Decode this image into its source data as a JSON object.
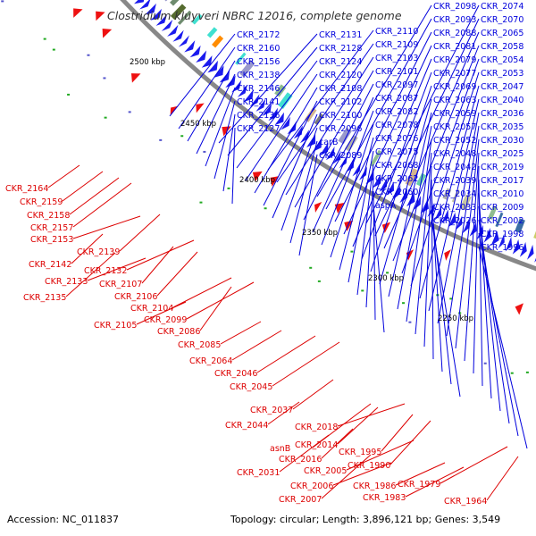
{
  "title": "Clostridium kluyveri NBRC 12016, complete genome",
  "footer": {
    "accession": "Accession: NC_011837",
    "info": "Topology: circular; Length: 3,896,121 bp; Genes: 3,549"
  },
  "colors": {
    "forward_label": "#0000dd",
    "reverse_label": "#dd0000",
    "forward_arrow": "#1a1aee",
    "reverse_arrow": "#ee1111",
    "backbone": "#888888"
  },
  "kbp_ticks": [
    "2500 kbp",
    "2450 kbp",
    "2400 kbp",
    "2350 kbp",
    "2300 kbp",
    "2250 kbp"
  ],
  "forward_labels": [
    "CKR_2172",
    "CKR_2160",
    "CKR_2156",
    "CKR_2138",
    "CKR_2146",
    "CKR_2141",
    "CKR_2136",
    "CKR_2127",
    "CKR_2131",
    "CKR_2128",
    "CKR_2124",
    "CKR_2120",
    "CKR_2108",
    "CKR_2102",
    "CKR_2100",
    "CKR_2096",
    "carB",
    "CKR_2089",
    "CKR_2110",
    "CKR_2109",
    "CKR_2103",
    "CKR_2101",
    "CKR_2097",
    "CKR_2087",
    "CKR_2082",
    "CKR_2078",
    "CKR_2076",
    "CKR_2075",
    "CKR_2068",
    "CKR_2062",
    "CKR_2060",
    "aspA",
    "CKR_2098",
    "CKR_2093",
    "CKR_2088",
    "CKR_2081",
    "CKR_2079",
    "CKR_2077",
    "CKR_2069",
    "CKR_2063",
    "CKR_2059",
    "CKR_2057",
    "CKR_2052",
    "CKR_2048",
    "CKR_2042",
    "CKR_2039",
    "CKR_2034",
    "CKR_2033",
    "CKR_2026",
    "CKR_2074",
    "CKR_2070",
    "CKR_2065",
    "CKR_2058",
    "CKR_2054",
    "CKR_2053",
    "CKR_2047",
    "CKR_2040",
    "CKR_2036",
    "CKR_2035",
    "CKR_2030",
    "CKR_2025",
    "CKR_2019",
    "CKR_2017",
    "CKR_2010",
    "CKR_2009",
    "CKR_2002",
    "CKR_1998",
    "CKR_1996"
  ],
  "reverse_labels": [
    "CKR_2164",
    "CKR_2159",
    "CKR_2158",
    "CKR_2157",
    "CKR_2153",
    "CKR_2142",
    "CKR_2139",
    "CKR_2135",
    "CKR_2133",
    "CKR_2132",
    "CKR_2107",
    "CKR_2106",
    "CKR_2105",
    "CKR_2104",
    "CKR_2099",
    "CKR_2086",
    "CKR_2085",
    "CKR_2064",
    "CKR_2046",
    "CKR_2045",
    "CKR_2044",
    "CKR_2037",
    "CKR_2031",
    "asnB",
    "CKR_2018",
    "CKR_2016",
    "CKR_2014",
    "CKR_2007",
    "CKR_2006",
    "CKR_2005",
    "CKR_1995",
    "CKR_1990",
    "CKR_1986",
    "CKR_1983",
    "CKR_1979",
    "CKR_1964"
  ]
}
